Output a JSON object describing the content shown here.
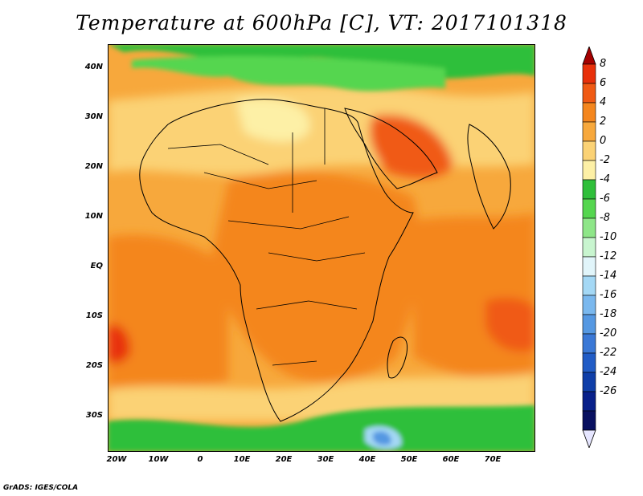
{
  "title": "Temperature at 600hPa [C], VT: 2017101318",
  "credit": "GrADS: IGES/COLA",
  "map": {
    "region": "Africa, Arabian Peninsula, India",
    "lon_ticks": [
      "20W",
      "10W",
      "0",
      "10E",
      "20E",
      "30E",
      "40E",
      "50E",
      "60E",
      "70E"
    ],
    "lat_ticks": [
      "40N",
      "30N",
      "20N",
      "10N",
      "EQ",
      "10S",
      "20S",
      "30S"
    ]
  },
  "colorbar": {
    "labels": [
      "8",
      "6",
      "4",
      "2",
      "0",
      "-2",
      "-4",
      "-6",
      "-8",
      "-10",
      "-12",
      "-14",
      "-16",
      "-18",
      "-20",
      "-22",
      "-24",
      "-26"
    ],
    "colors": [
      "#a50000",
      "#e8300a",
      "#f05a14",
      "#f4861e",
      "#f7a83c",
      "#fbd275",
      "#fdf0a6",
      "#2fbf3a",
      "#55d64f",
      "#8ee688",
      "#c8f5cf",
      "#e1f5fa",
      "#a4d8f5",
      "#7ab8ee",
      "#5598e2",
      "#3a78d6",
      "#215cc6",
      "#0f3ea8",
      "#08208a",
      "#081060",
      "#e6e6ff"
    ]
  }
}
